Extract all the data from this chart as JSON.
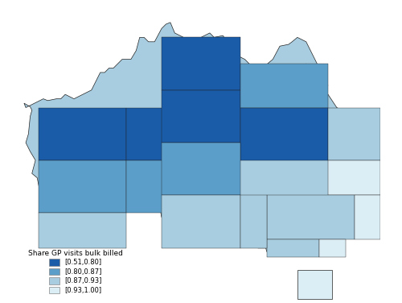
{
  "legend_title": "Share GP visits bulk billed",
  "legend_labels": [
    "[0.51,0.80]",
    "[0.80,0.87]",
    "[0.87,0.93]",
    "[0.93,1.00]"
  ],
  "legend_colors": [
    "#1a5ca8",
    "#5b9ec9",
    "#a8cde0",
    "#dceef5"
  ],
  "background_color": "#ffffff",
  "border_color": "#222222",
  "border_width": 0.4,
  "figsize": [
    5.0,
    3.76
  ],
  "dpi": 100
}
